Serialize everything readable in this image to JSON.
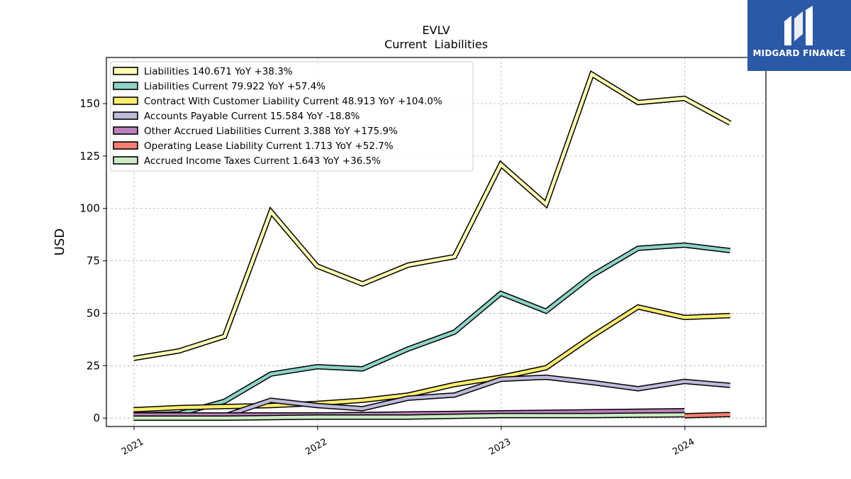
{
  "brand": {
    "name": "MIDGARD FINANCE",
    "color": "#2c58a8"
  },
  "chart_data": {
    "type": "line",
    "title": "EVLV",
    "subtitle": "Current  Liabilities",
    "ylabel": "USD",
    "xlabel": "",
    "ylim": [
      -4,
      172
    ],
    "xlim": [
      "2020-11-07",
      "2024-06-10"
    ],
    "yticks": [
      0,
      25,
      50,
      75,
      100,
      125,
      150
    ],
    "xticks": [
      {
        "date": "2021-01-01",
        "label": "2021"
      },
      {
        "date": "2022-01-01",
        "label": "2022"
      },
      {
        "date": "2023-01-01",
        "label": "2023"
      },
      {
        "date": "2024-01-01",
        "label": "2024"
      }
    ],
    "grid": true,
    "legend_position": "top-left",
    "series": [
      {
        "name": "Liabilities",
        "legend": "Liabilities  140.671 YoY +38.3%",
        "color": "#ffffb3",
        "points": [
          [
            "2020-12-31",
            28.5
          ],
          [
            "2021-03-31",
            32
          ],
          [
            "2021-06-30",
            39
          ],
          [
            "2021-09-30",
            98.5
          ],
          [
            "2021-12-31",
            72.5
          ],
          [
            "2022-03-31",
            64
          ],
          [
            "2022-06-30",
            73
          ],
          [
            "2022-09-30",
            77
          ],
          [
            "2022-12-31",
            121
          ],
          [
            "2023-03-31",
            102
          ],
          [
            "2023-06-30",
            164
          ],
          [
            "2023-09-30",
            150.5
          ],
          [
            "2023-12-31",
            152.5
          ],
          [
            "2024-03-31",
            140.7
          ]
        ]
      },
      {
        "name": "Liabilities Current",
        "legend": "Liabilities Current  79.922 YoY +57.4%",
        "color": "#8dd3c7",
        "points": [
          [
            "2020-12-31",
            1.5
          ],
          [
            "2021-03-31",
            2
          ],
          [
            "2021-06-30",
            8
          ],
          [
            "2021-09-30",
            21
          ],
          [
            "2021-12-31",
            24.5
          ],
          [
            "2022-03-31",
            23.5
          ],
          [
            "2022-06-30",
            33
          ],
          [
            "2022-09-30",
            41
          ],
          [
            "2022-12-31",
            59.5
          ],
          [
            "2023-03-31",
            51
          ],
          [
            "2023-06-30",
            68
          ],
          [
            "2023-09-30",
            81
          ],
          [
            "2023-12-31",
            82.5
          ],
          [
            "2024-03-31",
            79.9
          ]
        ]
      },
      {
        "name": "Contract With Customer Liability Current",
        "legend": "Contract With Customer Liability Current  48.913 YoY +104.0%",
        "color": "#ffed6f",
        "points": [
          [
            "2020-12-31",
            4
          ],
          [
            "2021-03-31",
            5
          ],
          [
            "2021-06-30",
            5.5
          ],
          [
            "2021-09-30",
            6
          ],
          [
            "2021-12-31",
            7
          ],
          [
            "2022-03-31",
            8.5
          ],
          [
            "2022-06-30",
            11
          ],
          [
            "2022-09-30",
            16
          ],
          [
            "2022-12-31",
            19.5
          ],
          [
            "2023-03-31",
            24
          ],
          [
            "2023-06-30",
            39
          ],
          [
            "2023-09-30",
            53
          ],
          [
            "2023-12-31",
            48
          ],
          [
            "2024-03-31",
            48.9
          ]
        ]
      },
      {
        "name": "Accounts Payable Current",
        "legend": "Accounts Payable Current  15.584 YoY -18.8%",
        "color": "#bebada",
        "points": [
          [
            "2020-12-31",
            1
          ],
          [
            "2021-03-31",
            0.5
          ],
          [
            "2021-06-30",
            1
          ],
          [
            "2021-09-30",
            8.5
          ],
          [
            "2021-12-31",
            6
          ],
          [
            "2022-03-31",
            4.5
          ],
          [
            "2022-06-30",
            9.5
          ],
          [
            "2022-09-30",
            11
          ],
          [
            "2022-12-31",
            18.5
          ],
          [
            "2023-03-31",
            19.5
          ],
          [
            "2023-06-30",
            17
          ],
          [
            "2023-09-30",
            14
          ],
          [
            "2023-12-31",
            17.5
          ],
          [
            "2024-03-31",
            15.6
          ]
        ]
      },
      {
        "name": "Other Accrued Liabilities Current",
        "legend": "Other Accrued Liabilities Current  3.388 YoY +175.9%",
        "color": "#bc80bd",
        "points": [
          [
            "2020-12-31",
            1.5
          ],
          [
            "2021-12-31",
            1.5
          ],
          [
            "2022-12-31",
            2.5
          ],
          [
            "2023-12-31",
            3.5
          ]
        ]
      },
      {
        "name": "Operating Lease Liability Current",
        "legend": "Operating Lease Liability Current  1.713 YoY +52.7%",
        "color": "#fb8072",
        "points": [
          [
            "2023-12-31",
            1.1
          ],
          [
            "2024-03-31",
            1.7
          ]
        ]
      },
      {
        "name": "Accrued Income Taxes Current",
        "legend": "Accrued Income Taxes Current  1.643 YoY +36.5%",
        "color": "#ccebc5",
        "points": [
          [
            "2020-12-31",
            0
          ],
          [
            "2021-06-30",
            0
          ],
          [
            "2021-12-31",
            0.5
          ],
          [
            "2022-06-30",
            0.5
          ],
          [
            "2022-12-31",
            1.2
          ],
          [
            "2023-06-30",
            1.2
          ],
          [
            "2023-12-31",
            1.6
          ]
        ]
      }
    ]
  }
}
